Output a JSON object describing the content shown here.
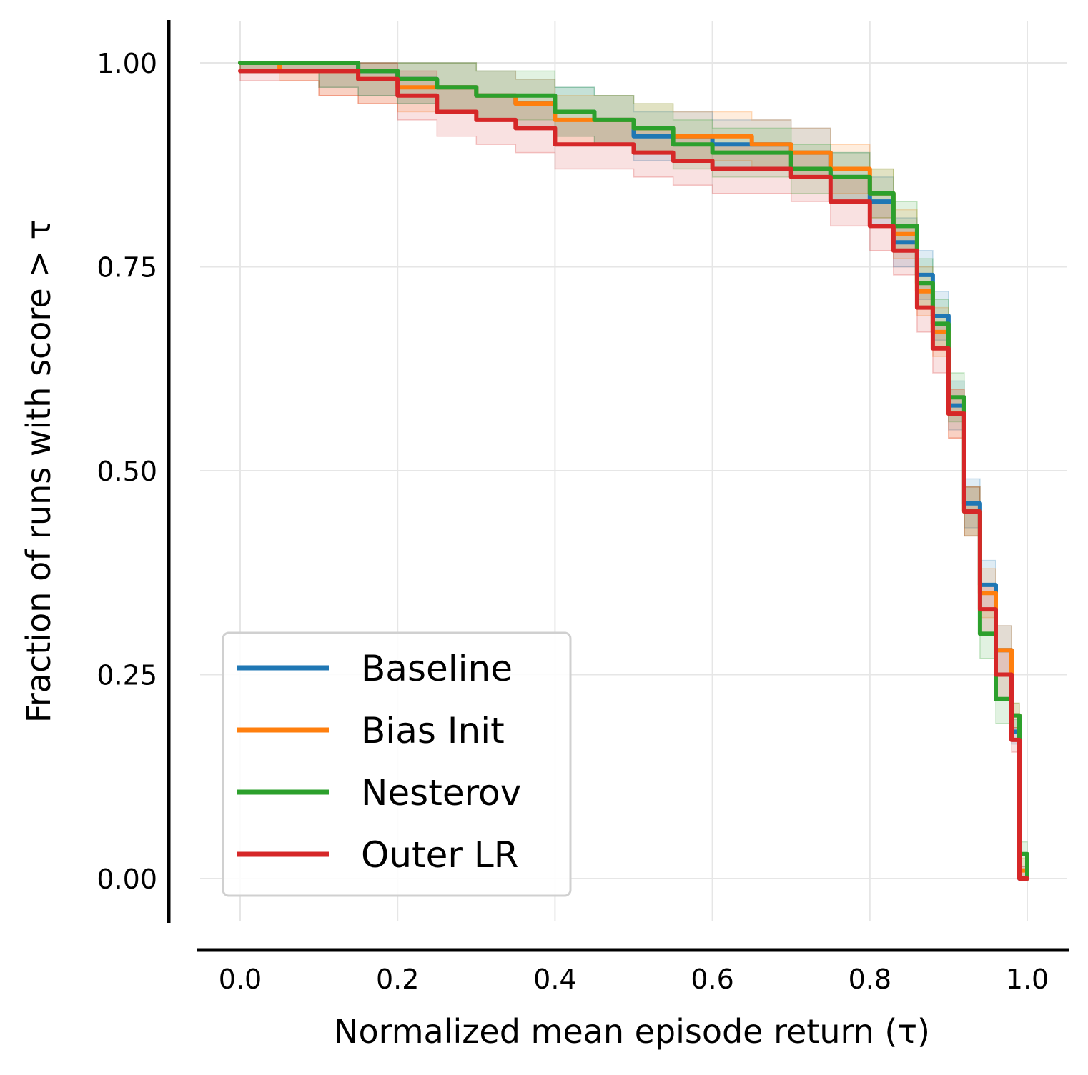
{
  "chart_data": {
    "type": "line",
    "xlabel": "Normalized mean episode return (τ)",
    "ylabel": "Fraction of runs with score  > τ",
    "xlim": [
      -0.05,
      1.05
    ],
    "ylim": [
      -0.05,
      1.05
    ],
    "xticks": [
      "0.0",
      "0.2",
      "0.4",
      "0.6",
      "0.8",
      "1.0"
    ],
    "yticks": [
      "0.00",
      "0.25",
      "0.50",
      "0.75",
      "1.00"
    ],
    "xtick_values": [
      0.0,
      0.2,
      0.4,
      0.6,
      0.8,
      1.0
    ],
    "ytick_values": [
      0.0,
      0.25,
      0.5,
      0.75,
      1.0
    ],
    "grid": true,
    "legend_position": "lower-left",
    "series": [
      {
        "name": "Baseline",
        "color": "#1f77b4",
        "x": [
          0.0,
          0.05,
          0.1,
          0.15,
          0.2,
          0.25,
          0.3,
          0.35,
          0.4,
          0.45,
          0.5,
          0.55,
          0.6,
          0.65,
          0.7,
          0.75,
          0.8,
          0.83,
          0.86,
          0.88,
          0.9,
          0.92,
          0.94,
          0.96,
          0.98,
          0.99,
          1.0
        ],
        "y": [
          1.0,
          1.0,
          1.0,
          0.99,
          0.98,
          0.97,
          0.96,
          0.95,
          0.94,
          0.93,
          0.91,
          0.91,
          0.9,
          0.9,
          0.89,
          0.86,
          0.83,
          0.78,
          0.74,
          0.69,
          0.58,
          0.46,
          0.36,
          0.28,
          0.18,
          0.0,
          0.0
        ]
      },
      {
        "name": "Bias Init",
        "color": "#ff7f0e",
        "x": [
          0.0,
          0.05,
          0.1,
          0.15,
          0.2,
          0.25,
          0.3,
          0.35,
          0.4,
          0.45,
          0.5,
          0.55,
          0.6,
          0.65,
          0.7,
          0.75,
          0.8,
          0.83,
          0.86,
          0.88,
          0.9,
          0.92,
          0.94,
          0.96,
          0.98,
          0.99,
          1.0
        ],
        "y": [
          1.0,
          0.99,
          0.99,
          0.98,
          0.97,
          0.97,
          0.96,
          0.95,
          0.93,
          0.93,
          0.92,
          0.91,
          0.91,
          0.9,
          0.89,
          0.87,
          0.84,
          0.79,
          0.72,
          0.67,
          0.57,
          0.45,
          0.35,
          0.28,
          0.2,
          0.01,
          0.0
        ]
      },
      {
        "name": "Nesterov",
        "color": "#2ca02c",
        "x": [
          0.0,
          0.05,
          0.1,
          0.15,
          0.2,
          0.25,
          0.3,
          0.35,
          0.4,
          0.45,
          0.5,
          0.55,
          0.6,
          0.65,
          0.7,
          0.75,
          0.8,
          0.83,
          0.86,
          0.88,
          0.9,
          0.92,
          0.94,
          0.96,
          0.98,
          0.99,
          1.0
        ],
        "y": [
          1.0,
          1.0,
          1.0,
          0.99,
          0.98,
          0.97,
          0.96,
          0.96,
          0.94,
          0.93,
          0.92,
          0.9,
          0.89,
          0.89,
          0.87,
          0.86,
          0.84,
          0.8,
          0.73,
          0.68,
          0.59,
          0.45,
          0.3,
          0.22,
          0.2,
          0.03,
          0.0
        ]
      },
      {
        "name": "Outer LR",
        "color": "#d62728",
        "x": [
          0.0,
          0.05,
          0.1,
          0.15,
          0.2,
          0.25,
          0.3,
          0.35,
          0.4,
          0.45,
          0.5,
          0.55,
          0.6,
          0.65,
          0.7,
          0.75,
          0.8,
          0.83,
          0.86,
          0.88,
          0.9,
          0.92,
          0.94,
          0.96,
          0.98,
          0.99,
          1.0
        ],
        "y": [
          0.99,
          0.99,
          0.99,
          0.98,
          0.96,
          0.94,
          0.93,
          0.92,
          0.9,
          0.9,
          0.89,
          0.88,
          0.87,
          0.87,
          0.86,
          0.83,
          0.8,
          0.77,
          0.7,
          0.65,
          0.57,
          0.45,
          0.33,
          0.25,
          0.17,
          0.0,
          0.0
        ]
      }
    ]
  }
}
